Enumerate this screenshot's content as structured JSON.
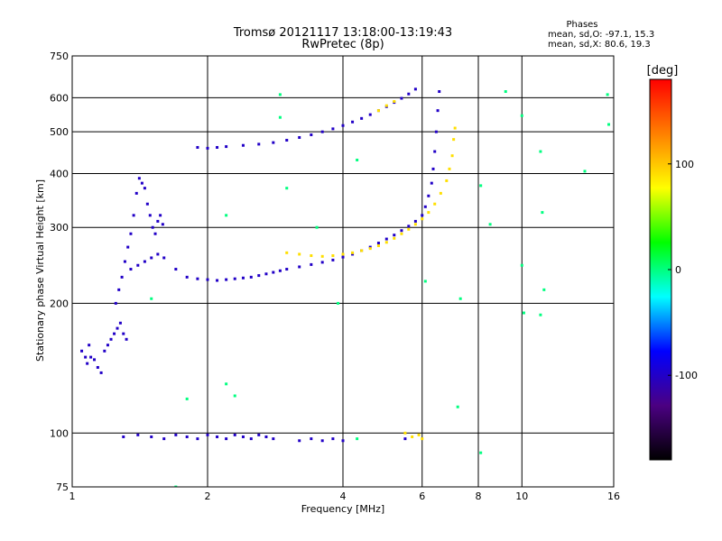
{
  "chart_data": {
    "type": "scatter",
    "title": "Tromsø 20121117 13:18:00-13:19:43",
    "subtitle": "RwPretec (8p)",
    "stats": {
      "heading": "Phases",
      "line1": "mean, sd,O: -97.1, 15.3",
      "line2": "mean, sd,X:  80.6, 19.3"
    },
    "xlabel": "Frequency [MHz]",
    "ylabel": "Stationary phase Virtual Height [km]",
    "x_scale": "log",
    "y_scale": "log",
    "xlim": [
      1,
      16
    ],
    "ylim": [
      75,
      750
    ],
    "xticks": [
      1,
      2,
      4,
      6,
      8,
      10,
      16
    ],
    "xtick_labels": [
      "1",
      "2",
      "4",
      "6",
      "8",
      "10",
      "16"
    ],
    "yticks": [
      75,
      100,
      200,
      300,
      400,
      500,
      600,
      750
    ],
    "ytick_labels": [
      "75",
      "100",
      "200",
      "300",
      "400",
      "500",
      "600",
      "750"
    ],
    "grid": true,
    "colorbar": {
      "label": "[deg]",
      "range": [
        -180,
        180
      ],
      "ticks": [
        100,
        0,
        -100
      ],
      "tick_labels": [
        "100",
        "0",
        "-100"
      ],
      "colors": [
        "#ff0000",
        "#ff8000",
        "#ffff00",
        "#00ff00",
        "#00ffff",
        "#0000ff",
        "#4b0082",
        "#000000"
      ]
    },
    "series": [
      {
        "points": [
          [
            1.05,
            155
          ],
          [
            1.07,
            150
          ],
          [
            1.08,
            145
          ],
          [
            1.09,
            160
          ],
          [
            1.1,
            150
          ],
          [
            1.12,
            148
          ],
          [
            1.14,
            142
          ],
          [
            1.16,
            138
          ],
          [
            1.18,
            155
          ],
          [
            1.2,
            160
          ],
          [
            1.22,
            165
          ],
          [
            1.24,
            170
          ],
          [
            1.26,
            175
          ],
          [
            1.28,
            180
          ],
          [
            1.3,
            170
          ],
          [
            1.32,
            165
          ],
          [
            1.25,
            200
          ],
          [
            1.27,
            215
          ],
          [
            1.29,
            230
          ],
          [
            1.31,
            250
          ],
          [
            1.33,
            270
          ],
          [
            1.35,
            290
          ],
          [
            1.37,
            320
          ],
          [
            1.39,
            360
          ],
          [
            1.41,
            390
          ],
          [
            1.43,
            380
          ],
          [
            1.45,
            370
          ],
          [
            1.47,
            340
          ],
          [
            1.49,
            320
          ],
          [
            1.51,
            300
          ],
          [
            1.53,
            290
          ],
          [
            1.55,
            310
          ],
          [
            1.57,
            320
          ],
          [
            1.59,
            305
          ],
          [
            1.35,
            240
          ],
          [
            1.4,
            245
          ],
          [
            1.45,
            250
          ],
          [
            1.5,
            255
          ],
          [
            1.55,
            260
          ],
          [
            1.6,
            255
          ],
          [
            1.7,
            240
          ],
          [
            1.8,
            230
          ],
          [
            1.9,
            228
          ],
          [
            2.0,
            227
          ],
          [
            2.1,
            226
          ],
          [
            2.2,
            227
          ],
          [
            2.3,
            228
          ],
          [
            2.4,
            229
          ],
          [
            2.5,
            230
          ],
          [
            2.6,
            232
          ],
          [
            2.7,
            234
          ],
          [
            2.8,
            236
          ],
          [
            2.9,
            238
          ],
          [
            3.0,
            240
          ],
          [
            3.2,
            243
          ],
          [
            3.4,
            246
          ],
          [
            3.6,
            249
          ],
          [
            3.8,
            252
          ],
          [
            4.0,
            256
          ],
          [
            4.2,
            260
          ],
          [
            4.4,
            265
          ],
          [
            4.6,
            270
          ],
          [
            4.8,
            276
          ],
          [
            5.0,
            282
          ],
          [
            5.2,
            288
          ],
          [
            5.4,
            295
          ],
          [
            5.6,
            302
          ],
          [
            5.8,
            310
          ],
          [
            6.0,
            320
          ],
          [
            6.1,
            335
          ],
          [
            6.2,
            355
          ],
          [
            6.3,
            380
          ],
          [
            6.35,
            410
          ],
          [
            6.4,
            450
          ],
          [
            6.45,
            500
          ],
          [
            6.5,
            560
          ],
          [
            6.55,
            620
          ],
          [
            1.9,
            460
          ],
          [
            2.0,
            458
          ],
          [
            2.1,
            460
          ],
          [
            2.2,
            462
          ],
          [
            2.4,
            465
          ],
          [
            2.6,
            468
          ],
          [
            2.8,
            472
          ],
          [
            3.0,
            478
          ],
          [
            3.2,
            485
          ],
          [
            3.4,
            492
          ],
          [
            3.6,
            500
          ],
          [
            3.8,
            508
          ],
          [
            4.0,
            517
          ],
          [
            4.2,
            527
          ],
          [
            4.4,
            537
          ],
          [
            4.6,
            548
          ],
          [
            4.8,
            560
          ],
          [
            5.0,
            572
          ],
          [
            5.2,
            585
          ],
          [
            5.4,
            598
          ],
          [
            5.6,
            612
          ],
          [
            5.8,
            628
          ],
          [
            1.3,
            98
          ],
          [
            1.4,
            99
          ],
          [
            1.5,
            98
          ],
          [
            1.6,
            97
          ],
          [
            1.7,
            99
          ],
          [
            1.8,
            98
          ],
          [
            1.9,
            97
          ],
          [
            2.0,
            99
          ],
          [
            2.1,
            98
          ],
          [
            2.2,
            97
          ],
          [
            2.3,
            99
          ],
          [
            2.4,
            98
          ],
          [
            2.5,
            97
          ],
          [
            2.6,
            99
          ],
          [
            2.7,
            98
          ],
          [
            2.8,
            97
          ],
          [
            3.2,
            96
          ],
          [
            3.4,
            97
          ],
          [
            3.6,
            96
          ],
          [
            3.8,
            97
          ],
          [
            4.0,
            96
          ],
          [
            5.5,
            97
          ]
        ],
        "phase": -100
      },
      {
        "points": [
          [
            3.0,
            262
          ],
          [
            3.2,
            260
          ],
          [
            3.4,
            258
          ],
          [
            3.6,
            257
          ],
          [
            3.8,
            258
          ],
          [
            4.0,
            260
          ],
          [
            4.2,
            262
          ],
          [
            4.4,
            265
          ],
          [
            4.6,
            268
          ],
          [
            4.8,
            272
          ],
          [
            5.0,
            277
          ],
          [
            5.2,
            283
          ],
          [
            5.4,
            290
          ],
          [
            5.6,
            297
          ],
          [
            5.8,
            305
          ],
          [
            6.0,
            314
          ],
          [
            6.2,
            325
          ],
          [
            6.4,
            340
          ],
          [
            6.6,
            360
          ],
          [
            6.8,
            385
          ],
          [
            6.9,
            410
          ],
          [
            7.0,
            440
          ],
          [
            7.05,
            480
          ],
          [
            7.1,
            510
          ],
          [
            4.8,
            560
          ],
          [
            5.0,
            575
          ],
          [
            5.2,
            588
          ],
          [
            5.5,
            100
          ],
          [
            5.7,
            98
          ],
          [
            5.9,
            99
          ],
          [
            6.0,
            97
          ]
        ],
        "phase": 90
      },
      {
        "points": [
          [
            2.9,
            610
          ],
          [
            3.5,
            300
          ],
          [
            3.9,
            200
          ],
          [
            4.3,
            430
          ],
          [
            6.1,
            225
          ],
          [
            7.3,
            205
          ],
          [
            7.2,
            115
          ],
          [
            8.1,
            375
          ],
          [
            8.5,
            305
          ],
          [
            9.2,
            620
          ],
          [
            10.0,
            545
          ],
          [
            10.0,
            245
          ],
          [
            10.1,
            190
          ],
          [
            11.0,
            450
          ],
          [
            11.1,
            325
          ],
          [
            11.2,
            215
          ],
          [
            11.0,
            188
          ],
          [
            13.8,
            405
          ],
          [
            15.5,
            610
          ],
          [
            15.6,
            520
          ],
          [
            2.2,
            320
          ],
          [
            2.9,
            540
          ],
          [
            3.0,
            370
          ],
          [
            1.7,
            75
          ],
          [
            1.8,
            120
          ],
          [
            2.2,
            130
          ],
          [
            2.3,
            122
          ],
          [
            1.5,
            205
          ],
          [
            8.1,
            90
          ],
          [
            4.3,
            97
          ]
        ],
        "phase": 0
      }
    ]
  }
}
